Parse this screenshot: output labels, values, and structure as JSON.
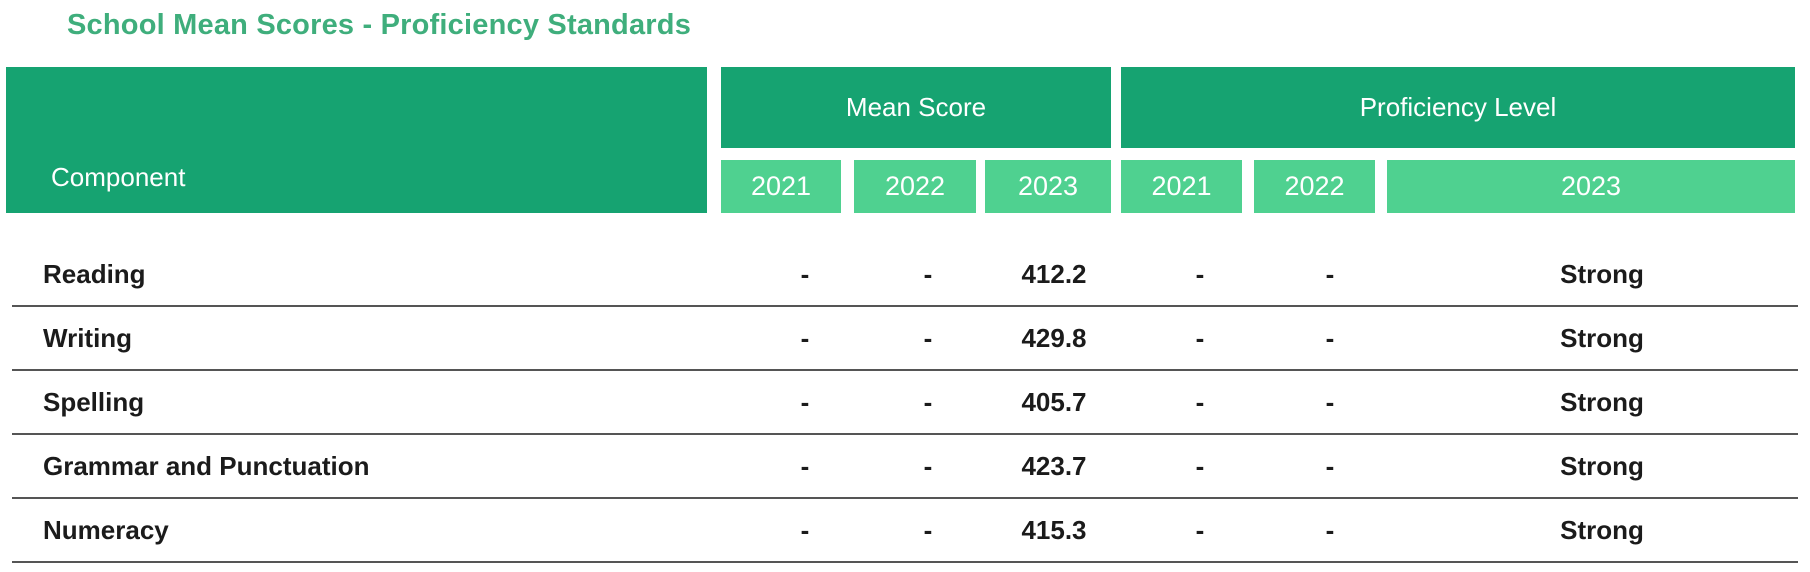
{
  "title": "School Mean Scores - Proficiency Standards",
  "header": {
    "component": "Component",
    "mean_score": "Mean Score",
    "proficiency_level": "Proficiency Level",
    "mean_years": [
      "2021",
      "2022",
      "2023"
    ],
    "prof_years": [
      "2021",
      "2022",
      "2023"
    ]
  },
  "rows": [
    {
      "component": "Reading",
      "mean": [
        "-",
        "-",
        "412.2"
      ],
      "proficiency": [
        "-",
        "-",
        "Strong"
      ]
    },
    {
      "component": "Writing",
      "mean": [
        "-",
        "-",
        "429.8"
      ],
      "proficiency": [
        "-",
        "-",
        "Strong"
      ]
    },
    {
      "component": "Spelling",
      "mean": [
        "-",
        "-",
        "405.7"
      ],
      "proficiency": [
        "-",
        "-",
        "Strong"
      ]
    },
    {
      "component": "Grammar and Punctuation",
      "mean": [
        "-",
        "-",
        "423.7"
      ],
      "proficiency": [
        "-",
        "-",
        "Strong"
      ]
    },
    {
      "component": "Numeracy",
      "mean": [
        "-",
        "-",
        "415.3"
      ],
      "proficiency": [
        "-",
        "-",
        "Strong"
      ]
    }
  ],
  "colors": {
    "header_dark": "#16a371",
    "header_light": "#4fd190",
    "title": "#3fae7c"
  }
}
